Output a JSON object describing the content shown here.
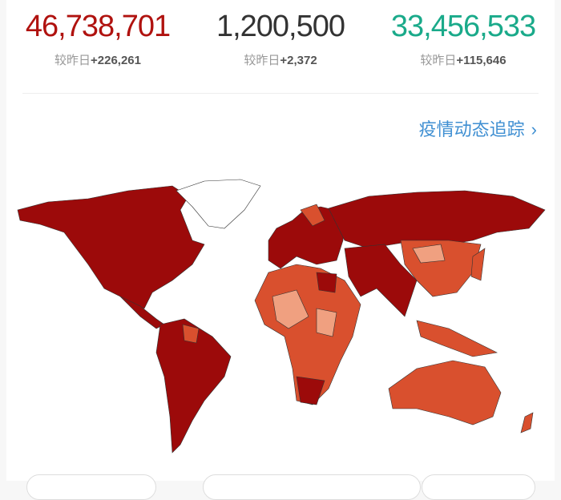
{
  "stats": [
    {
      "value": "46,738,701",
      "delta_label": "较昨日",
      "delta": "+226,261",
      "color": "#b0120f"
    },
    {
      "value": "1,200,500",
      "delta_label": "较昨日",
      "delta": "+2,372",
      "color": "#333333"
    },
    {
      "value": "33,456,533",
      "delta_label": "较昨日",
      "delta": "+115,646",
      "color": "#1aaa8a"
    }
  ],
  "tracking_link": "疫情动态追踪",
  "map_colors": {
    "high": "#9c0a0a",
    "mid": "#d9502e",
    "low": "#f0a080",
    "none": "#ffffff"
  }
}
